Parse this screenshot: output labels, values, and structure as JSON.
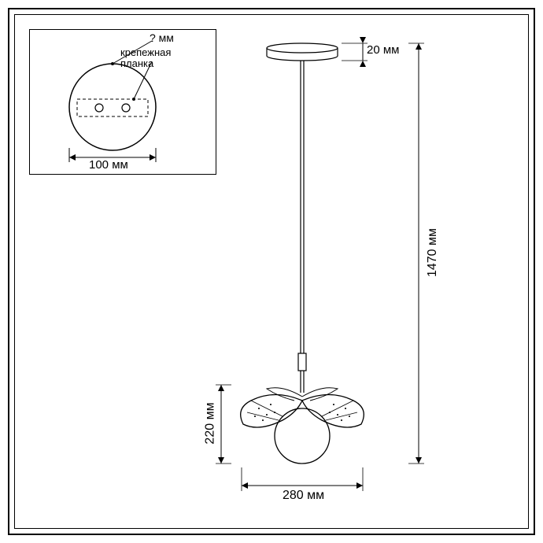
{
  "inset": {
    "unknown_label": "? мм",
    "bracket_label": "крепежная\nпланка",
    "width_label": "100 мм"
  },
  "main": {
    "canopy_height": "20 мм",
    "total_height": "1470 мм",
    "leaf_height": "220 мм",
    "width": "280 мм"
  },
  "colors": {
    "stroke": "#000000",
    "bg": "#ffffff"
  }
}
